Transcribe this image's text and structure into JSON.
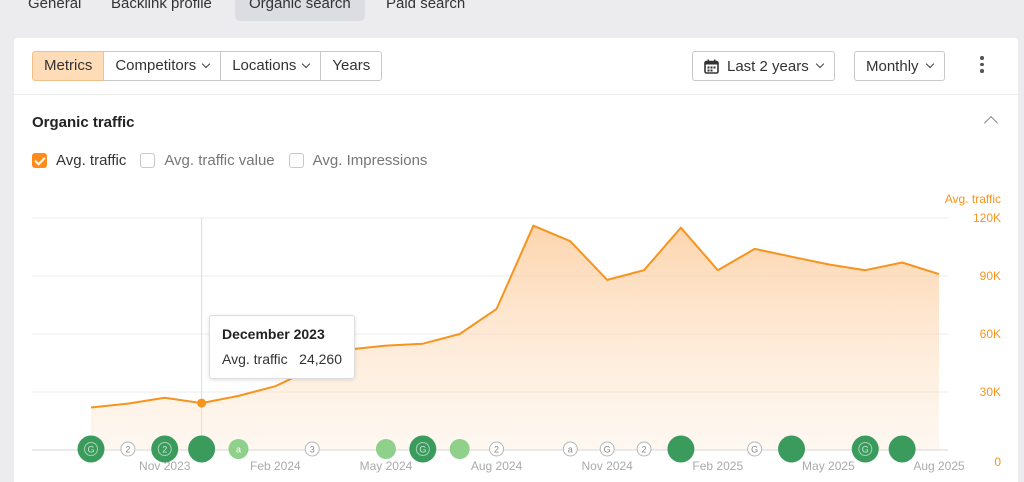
{
  "topnav": {
    "tabs": [
      {
        "label": "General",
        "active": false
      },
      {
        "label": "Backlink profile",
        "active": false
      },
      {
        "label": "Organic search",
        "active": true
      },
      {
        "label": "Paid search",
        "active": false
      }
    ]
  },
  "toolbar": {
    "segments": [
      {
        "label": "Metrics",
        "active": true,
        "dropdown": false
      },
      {
        "label": "Competitors",
        "active": false,
        "dropdown": true
      },
      {
        "label": "Locations",
        "active": false,
        "dropdown": true
      },
      {
        "label": "Years",
        "active": false,
        "dropdown": false
      }
    ],
    "date_range": "Last 2 years",
    "interval": "Monthly",
    "more_icon": "vertical-dots-icon",
    "calendar_icon": "calendar-icon"
  },
  "section": {
    "title": "Organic traffic",
    "collapse_icon": "chevron-up-icon"
  },
  "checkboxes": [
    {
      "label": "Avg. traffic",
      "checked": true
    },
    {
      "label": "Avg. traffic value",
      "checked": false
    },
    {
      "label": "Avg. Impressions",
      "checked": false
    }
  ],
  "colors": {
    "accent": "#ff8c1a",
    "line": "#f7941d",
    "marker_dark": "#3a9b5c",
    "marker_light": "#8fd08a",
    "axis_text": "#aaaaaa",
    "y_axis_text": "#f7941d"
  },
  "tooltip": {
    "title": "December 2023",
    "metric_label": "Avg. traffic",
    "metric_value": "24,260"
  },
  "chart_data": {
    "type": "area",
    "series": [
      {
        "name": "Avg. traffic",
        "x": [
          "Sep 2023",
          "Oct 2023",
          "Nov 2023",
          "Dec 2023",
          "Jan 2024",
          "Feb 2024",
          "Mar 2024",
          "Apr 2024",
          "May 2024",
          "Jun 2024",
          "Jul 2024",
          "Aug 2024",
          "Sep 2024",
          "Oct 2024",
          "Nov 2024",
          "Dec 2024",
          "Jan 2025",
          "Feb 2025",
          "Mar 2025",
          "Apr 2025",
          "May 2025",
          "Jun 2025",
          "Jul 2025",
          "Aug 2025"
        ],
        "values": [
          22000,
          24000,
          27000,
          24260,
          28000,
          33000,
          42000,
          52000,
          54000,
          55000,
          60000,
          73000,
          116000,
          108000,
          88000,
          93000,
          115000,
          93000,
          104000,
          100000,
          96000,
          93000,
          97000,
          91000
        ]
      }
    ],
    "y_axis_label": "Avg. traffic",
    "y_ticks": [
      "0",
      "30K",
      "60K",
      "90K",
      "120K"
    ],
    "ylim": [
      0,
      120000
    ],
    "x_tick_labels": [
      "Nov 2023",
      "Feb 2024",
      "May 2024",
      "Aug 2024",
      "Nov 2024",
      "Feb 2025",
      "May 2025",
      "Aug 2025"
    ],
    "x_tick_months": [
      2,
      5,
      8,
      11,
      14,
      17,
      20,
      23
    ],
    "hover_month": 3,
    "grid": true,
    "markers": [
      {
        "month": 0,
        "kind": "big",
        "text": "G"
      },
      {
        "month": 1,
        "kind": "small",
        "text": "2"
      },
      {
        "month": 2,
        "kind": "big",
        "text": "2"
      },
      {
        "month": 3,
        "kind": "big",
        "text": ""
      },
      {
        "month": 4,
        "kind": "light",
        "text": "a"
      },
      {
        "month": 6,
        "kind": "small",
        "text": "3"
      },
      {
        "month": 8,
        "kind": "light",
        "text": ""
      },
      {
        "month": 9,
        "kind": "big",
        "text": "G"
      },
      {
        "month": 10,
        "kind": "light",
        "text": ""
      },
      {
        "month": 11,
        "kind": "small",
        "text": "2"
      },
      {
        "month": 13,
        "kind": "small",
        "text": "a"
      },
      {
        "month": 14,
        "kind": "small",
        "text": "G"
      },
      {
        "month": 15,
        "kind": "small",
        "text": "2"
      },
      {
        "month": 16,
        "kind": "big",
        "text": ""
      },
      {
        "month": 18,
        "kind": "small",
        "text": "G"
      },
      {
        "month": 19,
        "kind": "big",
        "text": ""
      },
      {
        "month": 21,
        "kind": "big",
        "text": "G"
      },
      {
        "month": 22,
        "kind": "big",
        "text": ""
      }
    ]
  }
}
